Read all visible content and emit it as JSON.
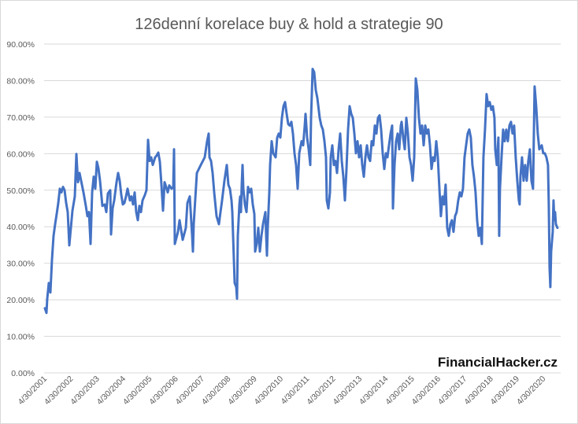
{
  "chart_data": {
    "type": "line",
    "title": "126denní korelace buy & hold a strategie 90",
    "xlabel": "",
    "ylabel": "",
    "ylim": [
      0,
      90
    ],
    "grid": true,
    "legend": "none",
    "line_color": "#4472C4",
    "y_ticks": [
      "0.00%",
      "10.00%",
      "20.00%",
      "30.00%",
      "40.00%",
      "50.00%",
      "60.00%",
      "70.00%",
      "80.00%",
      "90.00%"
    ],
    "x_ticks": [
      "4/30/2001",
      "4/30/2002",
      "4/30/2003",
      "4/30/2004",
      "4/30/2005",
      "4/30/2006",
      "4/30/2007",
      "4/30/2008",
      "4/30/2009",
      "4/30/2010",
      "4/30/2011",
      "4/30/2012",
      "4/30/2013",
      "4/30/2014",
      "4/30/2015",
      "4/30/2016",
      "4/30/2017",
      "4/30/2018",
      "4/30/2019",
      "4/30/2020"
    ],
    "watermark": "FinancialHacker.cz",
    "series": [
      {
        "name": "126denní korelace",
        "x": [
          2001.3,
          2001.36,
          2001.39,
          2001.45,
          2001.51,
          2001.57,
          2001.63,
          2001.69,
          2001.75,
          2001.81,
          2001.87,
          2001.93,
          2001.99,
          2002.05,
          2002.11,
          2002.17,
          2002.23,
          2002.29,
          2002.35,
          2002.44,
          2002.5,
          2002.56,
          2002.62,
          2002.68,
          2002.77,
          2002.86,
          2002.92,
          2002.98,
          2003.04,
          2003.1,
          2003.16,
          2003.22,
          2003.28,
          2003.34,
          2003.4,
          2003.49,
          2003.58,
          2003.64,
          2003.7,
          2003.79,
          2003.82,
          2003.88,
          2003.94,
          2004.03,
          2004.09,
          2004.15,
          2004.21,
          2004.27,
          2004.33,
          2004.39,
          2004.45,
          2004.54,
          2004.6,
          2004.66,
          2004.72,
          2004.78,
          2004.84,
          2004.9,
          2004.96,
          2005.02,
          2005.11,
          2005.17,
          2005.23,
          2005.29,
          2005.35,
          2005.41,
          2005.5,
          2005.56,
          2005.62,
          2005.68,
          2005.74,
          2005.8,
          2005.86,
          2005.92,
          2005.98,
          2006.04,
          2006.13,
          2006.19,
          2006.22,
          2006.25,
          2006.37,
          2006.43,
          2006.55,
          2006.67,
          2006.73,
          2006.82,
          2006.91,
          2006.94,
          2006.97,
          2007.09,
          2007.24,
          2007.39,
          2007.48,
          2007.54,
          2007.57,
          2007.63,
          2007.69,
          2007.75,
          2007.84,
          2007.93,
          2007.99,
          2008.05,
          2008.14,
          2008.23,
          2008.29,
          2008.35,
          2008.41,
          2008.44,
          2008.47,
          2008.5,
          2008.53,
          2008.59,
          2008.62,
          2008.65,
          2008.71,
          2008.74,
          2008.77,
          2008.8,
          2008.83,
          2008.86,
          2008.92,
          2008.98,
          2009.04,
          2009.1,
          2009.16,
          2009.22,
          2009.28,
          2009.31,
          2009.37,
          2009.43,
          2009.49,
          2009.55,
          2009.61,
          2009.7,
          2009.73,
          2009.76,
          2009.79,
          2009.85,
          2009.88,
          2009.94,
          2010.0,
          2010.09,
          2010.15,
          2010.21,
          2010.27,
          2010.33,
          2010.39,
          2010.45,
          2010.51,
          2010.57,
          2010.63,
          2010.69,
          2010.75,
          2010.81,
          2010.87,
          2010.93,
          2010.99,
          2011.08,
          2011.14,
          2011.2,
          2011.23,
          2011.29,
          2011.35,
          2011.41,
          2011.44,
          2011.47,
          2011.5,
          2011.56,
          2011.62,
          2011.68,
          2011.77,
          2011.83,
          2011.89,
          2011.95,
          2012.01,
          2012.04,
          2012.1,
          2012.16,
          2012.19,
          2012.25,
          2012.31,
          2012.37,
          2012.43,
          2012.49,
          2012.55,
          2012.61,
          2012.67,
          2012.73,
          2012.79,
          2012.85,
          2012.91,
          2012.97,
          2013.03,
          2013.09,
          2013.15,
          2013.21,
          2013.27,
          2013.33,
          2013.39,
          2013.45,
          2013.51,
          2013.57,
          2013.63,
          2013.69,
          2013.75,
          2013.81,
          2013.87,
          2013.93,
          2013.99,
          2014.05,
          2014.11,
          2014.17,
          2014.23,
          2014.29,
          2014.35,
          2014.41,
          2014.47,
          2014.53,
          2014.56,
          2014.62,
          2014.68,
          2014.74,
          2014.8,
          2014.86,
          2014.89,
          2014.95,
          2015.01,
          2015.07,
          2015.13,
          2015.19,
          2015.25,
          2015.31,
          2015.37,
          2015.43,
          2015.49,
          2015.55,
          2015.61,
          2015.67,
          2015.73,
          2015.79,
          2015.85,
          2015.91,
          2015.97,
          2016.03,
          2016.09,
          2016.15,
          2016.21,
          2016.27,
          2016.33,
          2016.39,
          2016.45,
          2016.51,
          2016.57,
          2016.63,
          2016.69,
          2016.75,
          2016.81,
          2016.87,
          2016.93,
          2016.99,
          2017.05,
          2017.11,
          2017.17,
          2017.23,
          2017.29,
          2017.35,
          2017.41,
          2017.47,
          2017.53,
          2017.59,
          2017.65,
          2017.71,
          2017.77,
          2017.83,
          2017.89,
          2017.95,
          2018.01,
          2018.07,
          2018.13,
          2018.19,
          2018.25,
          2018.31,
          2018.37,
          2018.43,
          2018.46,
          2018.52,
          2018.58,
          2018.61,
          2018.64,
          2018.7,
          2018.76,
          2018.82,
          2018.88,
          2018.94,
          2019.0,
          2019.06,
          2019.12,
          2019.18,
          2019.24,
          2019.3,
          2019.36,
          2019.39,
          2019.42,
          2019.48,
          2019.54,
          2019.6,
          2019.66,
          2019.72,
          2019.78,
          2019.84,
          2019.9,
          2019.96,
          2020.02,
          2020.08,
          2020.14,
          2020.23,
          2020.29,
          2020.35,
          2020.41,
          2020.47,
          2020.5,
          2020.53,
          2020.56,
          2020.59,
          2020.65,
          2020.68,
          2020.71,
          2020.74,
          2020.77,
          2020.83
        ],
        "y": [
          17.7,
          16.4,
          20.3,
          24.6,
          22.0,
          31.0,
          37.5,
          40.7,
          43.5,
          46.5,
          50.4,
          49.4,
          50.9,
          50.0,
          46.5,
          44.0,
          34.9,
          39.7,
          44.4,
          48.3,
          59.9,
          52.2,
          54.7,
          52.6,
          49.4,
          45.7,
          42.9,
          44.0,
          35.3,
          49.4,
          53.7,
          50.4,
          57.8,
          56.0,
          52.6,
          45.7,
          46.1,
          44.0,
          49.1,
          50.0,
          37.9,
          45.0,
          47.2,
          52.2,
          54.7,
          52.6,
          48.7,
          46.1,
          46.5,
          48.3,
          50.4,
          47.2,
          48.3,
          46.1,
          49.4,
          44.0,
          41.8,
          45.7,
          44.0,
          47.2,
          48.7,
          50.0,
          63.8,
          58.0,
          59.0,
          56.9,
          59.0,
          59.5,
          60.3,
          57.8,
          51.5,
          44.4,
          52.2,
          50.9,
          49.4,
          51.3,
          50.4,
          50.9,
          61.2,
          35.3,
          38.6,
          41.8,
          36.4,
          39.7,
          46.5,
          48.3,
          37.5,
          33.2,
          40.7,
          54.7,
          56.9,
          59.0,
          63.4,
          65.5,
          59.0,
          58.0,
          54.7,
          49.4,
          42.9,
          40.7,
          44.0,
          47.2,
          52.6,
          56.9,
          51.5,
          50.4,
          47.2,
          44.0,
          37.5,
          31.0,
          24.6,
          23.5,
          20.3,
          37.5,
          46.1,
          48.3,
          44.0,
          51.5,
          56.9,
          50.4,
          46.1,
          44.0,
          50.9,
          49.4,
          50.4,
          46.1,
          43.5,
          33.2,
          35.3,
          39.7,
          33.2,
          37.5,
          40.7,
          44.0,
          37.5,
          32.1,
          39.7,
          49.4,
          56.9,
          63.4,
          60.1,
          59.0,
          64.4,
          65.5,
          64.4,
          69.8,
          73.0,
          74.1,
          70.9,
          68.1,
          67.7,
          68.7,
          65.5,
          60.1,
          56.9,
          50.4,
          60.1,
          63.4,
          62.3,
          67.7,
          70.9,
          64.4,
          61.2,
          56.9,
          69.8,
          76.3,
          83.2,
          82.3,
          77.4,
          75.2,
          69.8,
          67.7,
          66.6,
          63.4,
          59.0,
          47.2,
          45.0,
          49.4,
          59.0,
          62.3,
          56.9,
          58.0,
          54.7,
          61.2,
          65.5,
          58.0,
          53.7,
          47.2,
          55.8,
          66.6,
          73.0,
          70.9,
          69.8,
          65.5,
          60.1,
          63.4,
          59.0,
          62.3,
          56.9,
          53.7,
          59.0,
          62.3,
          59.0,
          58.0,
          63.4,
          62.3,
          67.7,
          65.5,
          69.8,
          70.5,
          66.6,
          60.1,
          55.8,
          60.1,
          59.0,
          62.3,
          65.5,
          67.7,
          45.0,
          56.9,
          63.4,
          65.5,
          61.2,
          67.7,
          68.7,
          64.4,
          61.2,
          69.8,
          65.5,
          59.0,
          56.9,
          52.6,
          59.0,
          80.6,
          77.4,
          69.8,
          65.5,
          67.7,
          62.3,
          67.7,
          65.5,
          66.6,
          62.3,
          55.8,
          59.0,
          58.0,
          63.4,
          59.0,
          50.4,
          42.9,
          48.3,
          46.1,
          51.5,
          39.7,
          37.5,
          40.7,
          41.8,
          38.6,
          42.9,
          44.0,
          47.2,
          49.4,
          48.3,
          50.4,
          59.0,
          62.3,
          65.5,
          66.6,
          64.4,
          56.9,
          53.7,
          49.4,
          41.8,
          37.5,
          39.7,
          35.3,
          59.0,
          66.6,
          76.3,
          73.0,
          74.1,
          72.0,
          73.0,
          69.8,
          61.2,
          56.9,
          64.4,
          37.5,
          50.4,
          59.0,
          66.6,
          63.4,
          66.6,
          63.4,
          67.7,
          68.7,
          65.5,
          67.7,
          59.0,
          52.6,
          47.2,
          46.1,
          53.7,
          59.0,
          52.6,
          56.9,
          52.6,
          58.0,
          61.2,
          52.6,
          50.4,
          78.4,
          73.0,
          65.5,
          61.2,
          62.3,
          60.1,
          60.1,
          59.0,
          56.9,
          46.1,
          28.9,
          23.5,
          33.2,
          38.6,
          47.2,
          41.8,
          44.0,
          40.7,
          39.7
        ]
      }
    ]
  }
}
